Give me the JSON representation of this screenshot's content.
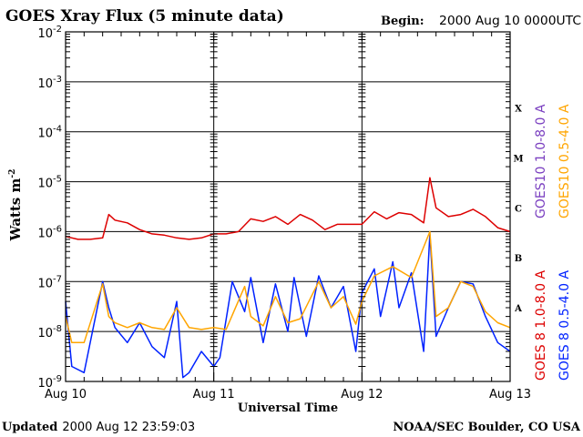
{
  "title": "GOES Xray Flux (5 minute data)",
  "begin_label": "Begin:",
  "begin_value": "2000 Aug 10 0000UTC",
  "updated_label": "Updated",
  "updated_value": "2000 Aug 12 23:59:03",
  "footer_right": "NOAA/SEC Boulder, CO USA",
  "colors": {
    "goes8_long": "#dd0000",
    "goes10_long": "#7a3fc0",
    "goes8_short": "#0022ff",
    "goes10_short": "#ffa500",
    "axes": "#000000"
  },
  "chart_data": {
    "type": "line",
    "title": "GOES Xray Flux (5 minute data)",
    "xlabel": "Universal Time",
    "ylabel": "Watts m",
    "ylabel_sup": "-2",
    "yscale": "log",
    "ylim": [
      1e-09,
      0.01
    ],
    "y_ticks": [
      {
        "value": 1e-09,
        "base": "10",
        "exp": "-9"
      },
      {
        "value": 1e-08,
        "base": "10",
        "exp": "-8"
      },
      {
        "value": 1e-07,
        "base": "10",
        "exp": "-7"
      },
      {
        "value": 1e-06,
        "base": "10",
        "exp": "-6"
      },
      {
        "value": 1e-05,
        "base": "10",
        "exp": "-5"
      },
      {
        "value": 0.0001,
        "base": "10",
        "exp": "-4"
      },
      {
        "value": 0.001,
        "base": "10",
        "exp": "-3"
      },
      {
        "value": 0.01,
        "base": "10",
        "exp": "-2"
      }
    ],
    "xlim": [
      "2000-08-10",
      "2000-08-13"
    ],
    "x_ticks": [
      "Aug 10",
      "Aug 11",
      "Aug 12",
      "Aug 13"
    ],
    "grid": "horizontal at each decade; vertical day markers",
    "flare_classes": [
      {
        "label": "A",
        "value": 3e-08
      },
      {
        "label": "B",
        "value": 3e-07
      },
      {
        "label": "C",
        "value": 3e-06
      },
      {
        "label": "M",
        "value": 3e-05
      },
      {
        "label": "X",
        "value": 0.0003
      }
    ],
    "legend_position": "right, vertical",
    "series": [
      {
        "name": "GOES 8 1.0-8.0 A",
        "color": "#dd0000",
        "x": [
          "2000-08-10 00:00",
          "2000-08-10 02:00",
          "2000-08-10 04:00",
          "2000-08-10 06:00",
          "2000-08-10 07:00",
          "2000-08-10 08:00",
          "2000-08-10 10:00",
          "2000-08-10 12:00",
          "2000-08-10 14:00",
          "2000-08-10 16:00",
          "2000-08-10 18:00",
          "2000-08-10 20:00",
          "2000-08-10 22:00",
          "2000-08-11 00:00",
          "2000-08-11 02:00",
          "2000-08-11 04:00",
          "2000-08-11 06:00",
          "2000-08-11 08:00",
          "2000-08-11 10:00",
          "2000-08-11 12:00",
          "2000-08-11 14:00",
          "2000-08-11 16:00",
          "2000-08-11 18:00",
          "2000-08-11 20:00",
          "2000-08-11 22:00",
          "2000-08-12 00:00",
          "2000-08-12 02:00",
          "2000-08-12 04:00",
          "2000-08-12 06:00",
          "2000-08-12 08:00",
          "2000-08-12 10:00",
          "2000-08-12 11:00",
          "2000-08-12 12:00",
          "2000-08-12 14:00",
          "2000-08-12 16:00",
          "2000-08-12 18:00",
          "2000-08-12 20:00",
          "2000-08-12 22:00",
          "2000-08-13 00:00"
        ],
        "values": [
          8e-07,
          7e-07,
          7e-07,
          7.5e-07,
          2.2e-06,
          1.7e-06,
          1.5e-06,
          1.1e-06,
          9e-07,
          8.5e-07,
          7.5e-07,
          7e-07,
          7.5e-07,
          9e-07,
          9e-07,
          1e-06,
          1.8e-06,
          1.6e-06,
          2e-06,
          1.4e-06,
          2.2e-06,
          1.7e-06,
          1.1e-06,
          1.4e-06,
          1.4e-06,
          1.4e-06,
          2.5e-06,
          1.8e-06,
          2.4e-06,
          2.2e-06,
          1.5e-06,
          1.2e-05,
          3e-06,
          2e-06,
          2.2e-06,
          2.8e-06,
          2e-06,
          1.2e-06,
          1e-06
        ]
      },
      {
        "name": "GOES10 1.0-8.0 A",
        "color": "#7a3fc0",
        "x": [],
        "values": []
      },
      {
        "name": "GOES 8 0.5-4.0 A",
        "color": "#0022ff",
        "x": [
          "2000-08-10 00:00",
          "2000-08-10 01:00",
          "2000-08-10 03:00",
          "2000-08-10 06:00",
          "2000-08-10 07:00",
          "2000-08-10 08:00",
          "2000-08-10 10:00",
          "2000-08-10 12:00",
          "2000-08-10 14:00",
          "2000-08-10 16:00",
          "2000-08-10 18:00",
          "2000-08-10 19:00",
          "2000-08-10 20:00",
          "2000-08-10 22:00",
          "2000-08-11 00:00",
          "2000-08-11 01:00",
          "2000-08-11 03:00",
          "2000-08-11 05:00",
          "2000-08-11 06:00",
          "2000-08-11 08:00",
          "2000-08-11 10:00",
          "2000-08-11 12:00",
          "2000-08-11 13:00",
          "2000-08-11 15:00",
          "2000-08-11 17:00",
          "2000-08-11 19:00",
          "2000-08-11 21:00",
          "2000-08-11 23:00",
          "2000-08-12 00:00",
          "2000-08-12 02:00",
          "2000-08-12 03:00",
          "2000-08-12 05:00",
          "2000-08-12 06:00",
          "2000-08-12 08:00",
          "2000-08-12 10:00",
          "2000-08-12 11:00",
          "2000-08-12 12:00",
          "2000-08-12 14:00",
          "2000-08-12 16:00",
          "2000-08-12 18:00",
          "2000-08-12 20:00",
          "2000-08-12 22:00",
          "2000-08-13 00:00"
        ],
        "values": [
          4e-08,
          2e-09,
          1.5e-09,
          1e-07,
          3e-08,
          1.2e-08,
          6e-09,
          1.5e-08,
          5e-09,
          3e-09,
          4e-08,
          1.2e-09,
          1.5e-09,
          4e-09,
          2e-09,
          3e-09,
          1e-07,
          2.5e-08,
          1.2e-07,
          6e-09,
          9e-08,
          1e-08,
          1.2e-07,
          8e-09,
          1.3e-07,
          3e-08,
          8e-08,
          4e-09,
          6e-08,
          1.8e-07,
          2e-08,
          2.5e-07,
          3e-08,
          1.5e-07,
          4e-09,
          9e-07,
          8e-09,
          3e-08,
          1e-07,
          9e-08,
          2e-08,
          6e-09,
          4e-09
        ]
      },
      {
        "name": "GOES10 0.5-4.0 A",
        "color": "#ffa500",
        "x": [
          "2000-08-10 00:00",
          "2000-08-10 01:00",
          "2000-08-10 03:00",
          "2000-08-10 06:00",
          "2000-08-10 07:00",
          "2000-08-10 08:00",
          "2000-08-10 10:00",
          "2000-08-10 12:00",
          "2000-08-10 14:00",
          "2000-08-10 16:00",
          "2000-08-10 18:00",
          "2000-08-10 20:00",
          "2000-08-10 22:00",
          "2000-08-11 00:00",
          "2000-08-11 02:00",
          "2000-08-11 05:00",
          "2000-08-11 06:00",
          "2000-08-11 08:00",
          "2000-08-11 10:00",
          "2000-08-11 12:00",
          "2000-08-11 14:00",
          "2000-08-11 17:00",
          "2000-08-11 19:00",
          "2000-08-11 21:00",
          "2000-08-11 23:00",
          "2000-08-12 00:00",
          "2000-08-12 02:00",
          "2000-08-12 05:00",
          "2000-08-12 08:00",
          "2000-08-12 11:00",
          "2000-08-12 12:00",
          "2000-08-12 14:00",
          "2000-08-12 16:00",
          "2000-08-12 18:00",
          "2000-08-12 20:00",
          "2000-08-12 22:00",
          "2000-08-13 00:00"
        ],
        "values": [
          2e-08,
          6e-09,
          6e-09,
          9e-08,
          2e-08,
          1.5e-08,
          1.2e-08,
          1.5e-08,
          1.2e-08,
          1.1e-08,
          3e-08,
          1.2e-08,
          1.1e-08,
          1.2e-08,
          1.1e-08,
          8e-08,
          2e-08,
          1.3e-08,
          5e-08,
          1.5e-08,
          1.8e-08,
          1e-07,
          3e-08,
          5e-08,
          1.4e-08,
          4e-08,
          1.3e-07,
          2e-07,
          1.2e-07,
          1e-06,
          2e-08,
          3e-08,
          1e-07,
          8e-08,
          2.5e-08,
          1.5e-08,
          1.2e-08
        ]
      }
    ]
  }
}
